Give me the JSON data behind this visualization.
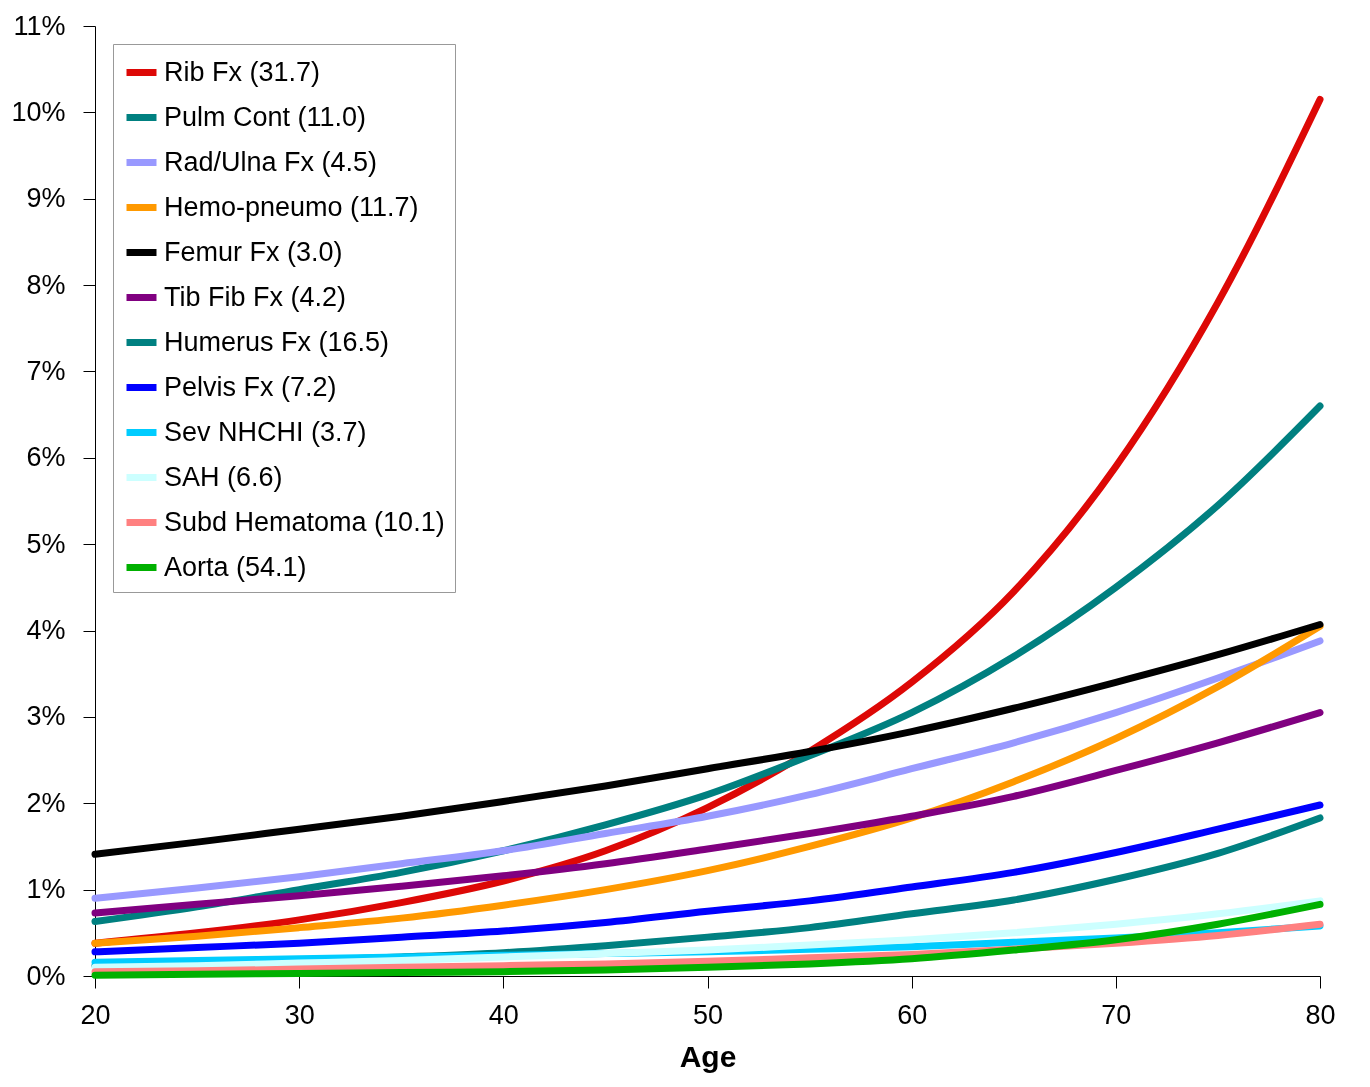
{
  "chart_data": {
    "type": "line",
    "xlabel": "Age",
    "x": [
      20,
      25,
      30,
      35,
      40,
      45,
      50,
      55,
      60,
      65,
      70,
      75,
      80
    ],
    "xlim": [
      20,
      80
    ],
    "xticks": [
      20,
      30,
      40,
      50,
      60,
      70,
      80
    ],
    "ylim": [
      0,
      11
    ],
    "yticks": [
      {
        "value": 0,
        "label": "0%"
      },
      {
        "value": 1,
        "label": "1%"
      },
      {
        "value": 2,
        "label": "2%"
      },
      {
        "value": 3,
        "label": "3%"
      },
      {
        "value": 4,
        "label": "4%"
      },
      {
        "value": 5,
        "label": "5%"
      },
      {
        "value": 6,
        "label": "6%"
      },
      {
        "value": 7,
        "label": "7%"
      },
      {
        "value": 8,
        "label": "8%"
      },
      {
        "value": 9,
        "label": "9%"
      },
      {
        "value": 10,
        "label": "10%"
      },
      {
        "value": 11,
        "label": "11%"
      }
    ],
    "grid": false,
    "legend": "top left",
    "marker": "none",
    "line_style": "solid",
    "series": [
      {
        "name": "Rib Fx (31.7)",
        "color": "#dd0806",
        "values": [
          0.38,
          0.5,
          0.65,
          0.85,
          1.1,
          1.45,
          1.95,
          2.6,
          3.4,
          4.45,
          5.9,
          7.8,
          10.15
        ]
      },
      {
        "name": "Pulm Cont (11.0)",
        "color": "#008080",
        "values": [
          0.63,
          0.8,
          1.0,
          1.2,
          1.45,
          1.75,
          2.1,
          2.55,
          3.05,
          3.7,
          4.5,
          5.45,
          6.6
        ]
      },
      {
        "name": "Rad/Ulna Fx (4.5)",
        "color": "#9999ff",
        "values": [
          0.9,
          1.02,
          1.15,
          1.3,
          1.45,
          1.65,
          1.85,
          2.1,
          2.4,
          2.7,
          3.05,
          3.45,
          3.88
        ]
      },
      {
        "name": "Hemo-pneumo (11.7)",
        "color": "#ff9900",
        "values": [
          0.38,
          0.46,
          0.56,
          0.67,
          0.82,
          1.0,
          1.22,
          1.5,
          1.83,
          2.25,
          2.75,
          3.35,
          4.05
        ]
      },
      {
        "name": "Femur Fx (3.0)",
        "color": "#000000",
        "values": [
          1.41,
          1.55,
          1.7,
          1.85,
          2.02,
          2.2,
          2.4,
          2.6,
          2.83,
          3.1,
          3.4,
          3.72,
          4.07
        ]
      },
      {
        "name": "Tib Fib Fx (4.2)",
        "color": "#800080",
        "values": [
          0.73,
          0.83,
          0.93,
          1.04,
          1.16,
          1.3,
          1.47,
          1.65,
          1.85,
          2.08,
          2.38,
          2.7,
          3.05
        ]
      },
      {
        "name": "Humerus Fx (16.5)",
        "color": "#008081",
        "values": [
          0.12,
          0.15,
          0.18,
          0.22,
          0.27,
          0.35,
          0.45,
          0.56,
          0.72,
          0.88,
          1.12,
          1.42,
          1.83
        ]
      },
      {
        "name": "Pelvis Fx (7.2)",
        "color": "#0000ff",
        "values": [
          0.28,
          0.33,
          0.38,
          0.45,
          0.52,
          0.62,
          0.75,
          0.87,
          1.03,
          1.2,
          1.43,
          1.7,
          1.98
        ]
      },
      {
        "name": "Sev NHCHI (3.7)",
        "color": "#00ccff",
        "values": [
          0.16,
          0.18,
          0.2,
          0.22,
          0.24,
          0.26,
          0.28,
          0.31,
          0.34,
          0.39,
          0.44,
          0.5,
          0.58
        ]
      },
      {
        "name": "SAH (6.6)",
        "color": "#ccffff",
        "values": [
          0.1,
          0.12,
          0.15,
          0.18,
          0.22,
          0.26,
          0.3,
          0.36,
          0.42,
          0.5,
          0.6,
          0.72,
          0.87
        ]
      },
      {
        "name": "Subd Hematoma (10.1)",
        "color": "#ff8080",
        "values": [
          0.05,
          0.06,
          0.08,
          0.1,
          0.12,
          0.14,
          0.17,
          0.21,
          0.25,
          0.31,
          0.38,
          0.47,
          0.6
        ]
      },
      {
        "name": "Aorta (54.1)",
        "color": "#00b000",
        "values": [
          0.01,
          0.02,
          0.03,
          0.04,
          0.05,
          0.07,
          0.1,
          0.14,
          0.2,
          0.3,
          0.42,
          0.6,
          0.83
        ]
      }
    ]
  }
}
